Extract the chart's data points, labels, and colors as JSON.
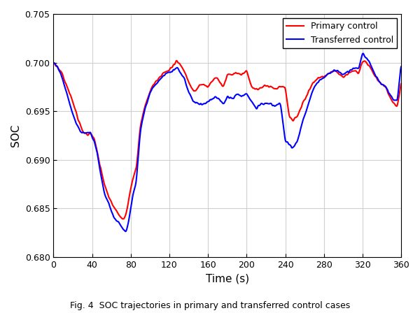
{
  "title": "",
  "xlabel": "Time (s)",
  "ylabel": "SOC",
  "xlim": [
    0,
    360
  ],
  "ylim": [
    0.68,
    0.705
  ],
  "xticks": [
    0,
    40,
    80,
    120,
    160,
    200,
    240,
    280,
    320,
    360
  ],
  "yticks": [
    0.68,
    0.685,
    0.69,
    0.695,
    0.7,
    0.705
  ],
  "primary_color": "#ff0000",
  "transferred_color": "#0000ff",
  "line_width": 1.5,
  "legend_labels": [
    "Primary control",
    "Transferred control"
  ],
  "legend_loc": "upper right",
  "background_color": "#ffffff",
  "grid_color": "#d0d0d0",
  "fig_caption": "Fig. 4  SOC trajectories in primary and transferred control cases"
}
